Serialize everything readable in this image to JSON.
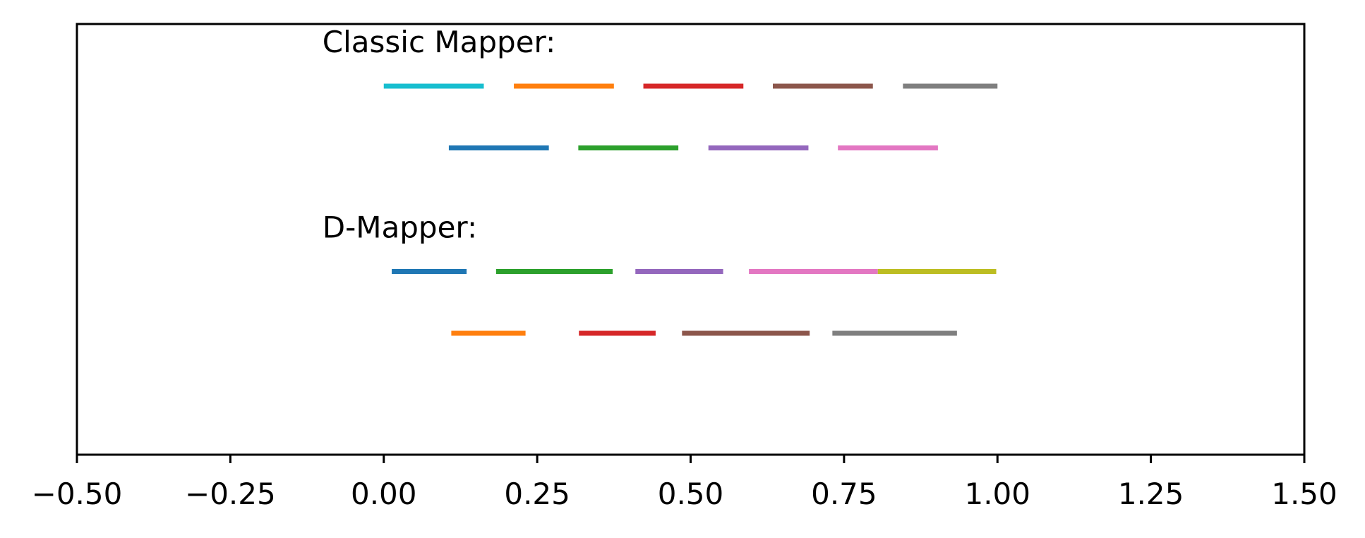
{
  "chart_data": {
    "type": "interval",
    "xlim": [
      -0.5,
      1.5
    ],
    "x_ticks": [
      -0.5,
      -0.25,
      0.0,
      0.25,
      0.5,
      0.75,
      1.0,
      1.25,
      1.5
    ],
    "x_tick_labels": [
      "−0.50",
      "−0.25",
      "0.00",
      "0.25",
      "0.50",
      "0.75",
      "1.00",
      "1.25",
      "1.50"
    ],
    "y_ticks_visible": false,
    "grid": false,
    "groups": [
      {
        "label": "Classic Mapper:",
        "label_x": -0.1,
        "rows": [
          {
            "level": 2,
            "intervals": [
              {
                "start": 0.0,
                "end": 0.163,
                "color": "#17becf"
              },
              {
                "start": 0.212,
                "end": 0.375,
                "color": "#ff7f0e"
              },
              {
                "start": 0.423,
                "end": 0.586,
                "color": "#d62728"
              },
              {
                "start": 0.634,
                "end": 0.797,
                "color": "#8c564b"
              },
              {
                "start": 0.846,
                "end": 1.0,
                "color": "#7f7f7f"
              }
            ]
          },
          {
            "level": 1,
            "intervals": [
              {
                "start": 0.106,
                "end": 0.269,
                "color": "#1f77b4"
              },
              {
                "start": 0.317,
                "end": 0.48,
                "color": "#2ca02c"
              },
              {
                "start": 0.529,
                "end": 0.692,
                "color": "#9467bd"
              },
              {
                "start": 0.74,
                "end": 0.903,
                "color": "#e377c2"
              }
            ]
          }
        ]
      },
      {
        "label": "D-Mapper:",
        "label_x": -0.1,
        "rows": [
          {
            "level": -1,
            "intervals": [
              {
                "start": 0.013,
                "end": 0.135,
                "color": "#1f77b4"
              },
              {
                "start": 0.183,
                "end": 0.373,
                "color": "#2ca02c"
              },
              {
                "start": 0.41,
                "end": 0.553,
                "color": "#9467bd"
              },
              {
                "start": 0.595,
                "end": 0.805,
                "color": "#e377c2"
              },
              {
                "start": 0.805,
                "end": 0.998,
                "color": "#bcbd22"
              }
            ]
          },
          {
            "level": -2,
            "intervals": [
              {
                "start": 0.11,
                "end": 0.231,
                "color": "#ff7f0e"
              },
              {
                "start": 0.318,
                "end": 0.443,
                "color": "#d62728"
              },
              {
                "start": 0.486,
                "end": 0.694,
                "color": "#8c564b"
              },
              {
                "start": 0.731,
                "end": 0.934,
                "color": "#7f7f7f"
              }
            ]
          }
        ]
      }
    ]
  }
}
